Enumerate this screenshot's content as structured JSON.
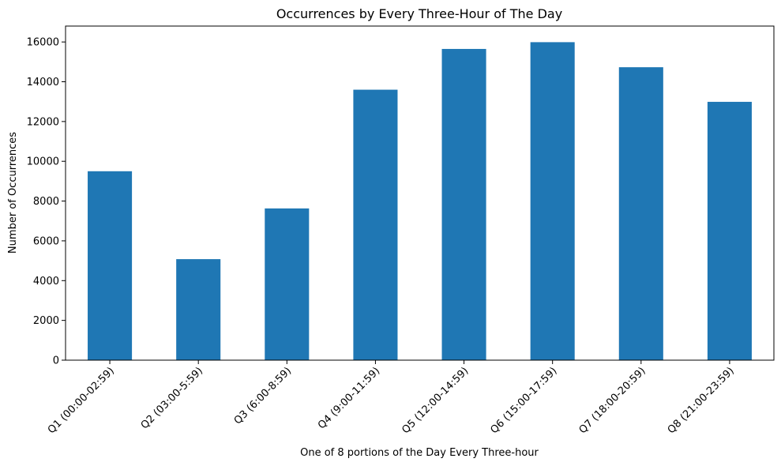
{
  "chart_data": {
    "type": "bar",
    "title": "Occurrences by Every Three-Hour of The Day",
    "xlabel": "One of 8 portions of the Day Every Three-hour",
    "ylabel": "Number of Occurrences",
    "categories": [
      "Q1 (00:00-02:59)",
      "Q2 (03:00-5:59)",
      "Q3 (6:00-8:59)",
      "Q4 (9:00-11:59)",
      "Q5 (12:00-14:59)",
      "Q6 (15:00-17:59)",
      "Q7 (18:00-20:59)",
      "Q8 (21:00-23:59)"
    ],
    "values": [
      9500,
      5080,
      7630,
      13600,
      15650,
      15990,
      14730,
      12990
    ],
    "ylim": [
      0,
      16800
    ],
    "yticks": [
      0,
      2000,
      4000,
      6000,
      8000,
      10000,
      12000,
      14000,
      16000
    ],
    "bar_color": "#1f77b4",
    "grid": false,
    "legend": "none"
  }
}
